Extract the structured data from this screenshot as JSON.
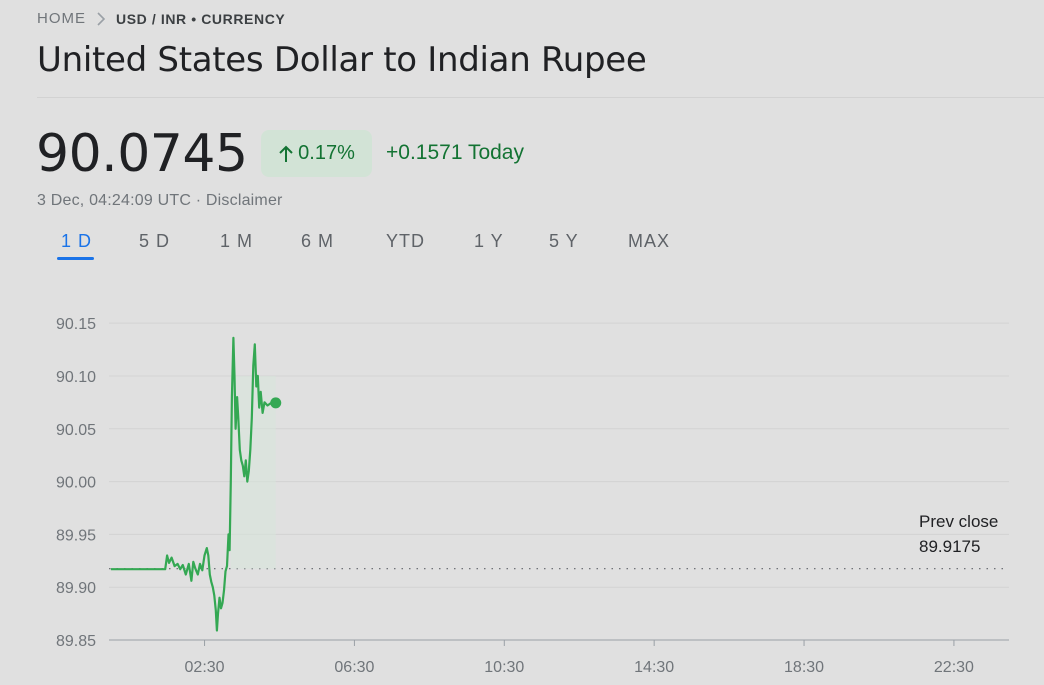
{
  "breadcrumb": {
    "home": "HOME",
    "current": "USD / INR • CURRENCY"
  },
  "title": "United States Dollar to Indian Rupee",
  "quote": {
    "price": "90.0745",
    "change_percent": "0.17%",
    "change_abs": "+0.1571 Today",
    "timestamp": "3 Dec, 04:24:09 UTC · Disclaimer"
  },
  "tabs": [
    {
      "label": "1 D",
      "active": true
    },
    {
      "label": "5 D",
      "active": false
    },
    {
      "label": "1 M",
      "active": false
    },
    {
      "label": "6 M",
      "active": false
    },
    {
      "label": "YTD",
      "active": false
    },
    {
      "label": "1 Y",
      "active": false
    },
    {
      "label": "5 Y",
      "active": false
    },
    {
      "label": "MAX",
      "active": false
    }
  ],
  "colors": {
    "accent": "#1a73e8",
    "positive": "#137333",
    "line": "#34a853"
  },
  "chart_data": {
    "type": "line",
    "x_unit": "hours (UTC)",
    "y_ticks": [
      "90.15",
      "90.10",
      "90.05",
      "90.00",
      "89.95",
      "89.90",
      "89.85"
    ],
    "x_ticks": [
      "02:30",
      "06:30",
      "10:30",
      "14:30",
      "18:30",
      "22:30"
    ],
    "ylim": [
      89.85,
      90.17
    ],
    "xlim": [
      -0.05,
      23.97
    ],
    "prev_close": {
      "label": "Prev close",
      "value": "89.9175",
      "y": 89.9175
    },
    "last_point": {
      "x": 4.4,
      "y": 90.0745
    },
    "series": [
      {
        "points": [
          [
            0.0,
            89.917
          ],
          [
            1.45,
            89.917
          ],
          [
            1.5,
            89.93
          ],
          [
            1.55,
            89.923
          ],
          [
            1.62,
            89.928
          ],
          [
            1.7,
            89.92
          ],
          [
            1.78,
            89.922
          ],
          [
            1.85,
            89.917
          ],
          [
            1.92,
            89.921
          ],
          [
            2.0,
            89.912
          ],
          [
            2.08,
            89.922
          ],
          [
            2.15,
            89.906
          ],
          [
            2.2,
            89.924
          ],
          [
            2.25,
            89.918
          ],
          [
            2.32,
            89.912
          ],
          [
            2.38,
            89.922
          ],
          [
            2.44,
            89.916
          ],
          [
            2.5,
            89.93
          ],
          [
            2.56,
            89.937
          ],
          [
            2.6,
            89.93
          ],
          [
            2.64,
            89.912
          ],
          [
            2.68,
            89.905
          ],
          [
            2.72,
            89.9
          ],
          [
            2.76,
            89.892
          ],
          [
            2.8,
            89.878
          ],
          [
            2.83,
            89.859
          ],
          [
            2.86,
            89.875
          ],
          [
            2.9,
            89.89
          ],
          [
            2.94,
            89.88
          ],
          [
            2.98,
            89.885
          ],
          [
            3.02,
            89.897
          ],
          [
            3.06,
            89.915
          ],
          [
            3.1,
            89.92
          ],
          [
            3.14,
            89.95
          ],
          [
            3.17,
            89.935
          ],
          [
            3.2,
            90.0
          ],
          [
            3.23,
            90.08
          ],
          [
            3.27,
            90.136
          ],
          [
            3.3,
            90.1
          ],
          [
            3.33,
            90.05
          ],
          [
            3.37,
            90.08
          ],
          [
            3.4,
            90.06
          ],
          [
            3.44,
            90.03
          ],
          [
            3.48,
            90.02
          ],
          [
            3.52,
            90.015
          ],
          [
            3.56,
            90.005
          ],
          [
            3.6,
            90.02
          ],
          [
            3.64,
            90.0
          ],
          [
            3.68,
            90.01
          ],
          [
            3.72,
            90.03
          ],
          [
            3.76,
            90.06
          ],
          [
            3.8,
            90.11
          ],
          [
            3.84,
            90.13
          ],
          [
            3.88,
            90.09
          ],
          [
            3.92,
            90.1
          ],
          [
            3.96,
            90.07
          ],
          [
            4.0,
            90.085
          ],
          [
            4.05,
            90.065
          ],
          [
            4.1,
            90.075
          ],
          [
            4.18,
            90.072
          ],
          [
            4.26,
            90.074
          ],
          [
            4.4,
            90.0745
          ]
        ]
      }
    ]
  }
}
